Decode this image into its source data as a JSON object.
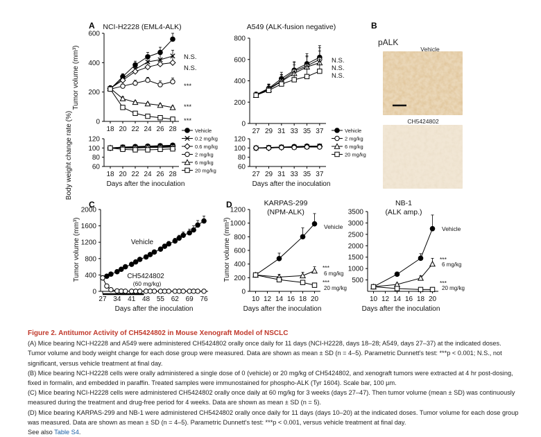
{
  "panels": {
    "A": "A",
    "B": "B",
    "C": "C",
    "D": "D"
  },
  "pAlk_label": "pALK",
  "micro_vehicle": "Vehicle",
  "micro_drug": "CH5424802",
  "caption": {
    "title": "Figure 2. Antitumor Activity of CH5424802 in Mouse Xenograft Model of NSCLC",
    "A": "(A) Mice bearing NCI-H2228 and A549 were administered CH5424802 orally once daily for 11 days (NCI-H2228, days 18–28; A549, days 27–37) at the indicated doses. Tumor volume and body weight change for each dose group were measured. Data are shown as mean ± SD (n = 4–5). Parametric Dunnett's test: ***p < 0.001; N.S., not significant, versus vehicle treatment at final day.",
    "B": "(B) Mice bearing NCI-H2228 cells were orally administered a single dose of 0 (vehicle) or 20 mg/kg of CH5424802, and xenograft tumors were extracted at 4 hr post-dosing, fixed in formalin, and embedded in paraffin. Treated samples were immunostained for phospho-ALK (Tyr 1604). Scale bar, 100 µm.",
    "C": "(C) Mice bearing NCI-H2228 cells were administered CH5424802 orally once daily at 60 mg/kg for 3 weeks (days 27–47). Then tumor volume (mean ± SD) was continuously measured during the treatment and drug-free period for 4 weeks. Data are shown as mean ± SD (n = 5).",
    "D": "(D) Mice bearing KARPAS-299 and NB-1 were administered CH5424802 orally once daily for 11 days (days 10–20) at the indicated doses. Tumor volume for each dose group was measured. Data are shown as mean ± SD (n = 4–5). Parametric Dunnett's test: ***p < 0.001, versus vehicle treatment at final day.",
    "see_also": "See also ",
    "see_also_link": "Table S4",
    "see_also_end": "."
  },
  "chart_data": [
    {
      "id": "A1",
      "type": "line",
      "title": "NCI-H2228 (EML4-ALK)",
      "ylabel": "Tumor volume (mm³)",
      "xlabel": "",
      "xlim": [
        17,
        29
      ],
      "ylim": [
        0,
        600
      ],
      "xticks": [
        18,
        20,
        22,
        24,
        26,
        28
      ],
      "yticks": [
        0,
        200,
        400,
        600
      ],
      "x": [
        18,
        20,
        22,
        24,
        26,
        28
      ],
      "series": [
        {
          "name": "Vehicle",
          "marker": "filled-circle",
          "values": [
            220,
            305,
            385,
            440,
            470,
            560
          ],
          "err": [
            18,
            20,
            25,
            30,
            35,
            40
          ]
        },
        {
          "name": "0.2 mg/kg",
          "marker": "x",
          "values": [
            225,
            290,
            355,
            405,
            420,
            445
          ],
          "err": [
            18,
            20,
            25,
            30,
            35,
            40
          ]
        },
        {
          "name": "0.6 mg/kg",
          "marker": "diamond",
          "values": [
            225,
            280,
            340,
            370,
            390,
            400
          ],
          "err": [
            18,
            20,
            25,
            30,
            35,
            40
          ]
        },
        {
          "name": "2 mg/kg",
          "marker": "open-circle",
          "values": [
            220,
            240,
            260,
            280,
            250,
            270
          ],
          "err": [
            15,
            15,
            20,
            20,
            25,
            25
          ]
        },
        {
          "name": "6 mg/kg",
          "marker": "triangle",
          "values": [
            225,
            155,
            130,
            120,
            110,
            95
          ],
          "err": [
            12,
            12,
            10,
            10,
            10,
            10
          ]
        },
        {
          "name": "20 mg/kg",
          "marker": "square",
          "values": [
            220,
            95,
            55,
            35,
            25,
            15
          ],
          "err": [
            10,
            8,
            6,
            5,
            5,
            4
          ]
        }
      ],
      "annotations": [
        "N.S.",
        "N.S.",
        "***",
        "***",
        "***"
      ]
    },
    {
      "id": "A2",
      "type": "line",
      "title": "A549 (ALK-fusion negative)",
      "xlim": [
        26,
        38
      ],
      "ylim": [
        0,
        800
      ],
      "xticks": [
        27,
        29,
        31,
        33,
        35,
        37
      ],
      "yticks": [
        0,
        200,
        400,
        600,
        800
      ],
      "x": [
        27,
        29,
        31,
        33,
        35,
        37
      ],
      "series": [
        {
          "name": "Vehicle",
          "marker": "filled-circle",
          "values": [
            270,
            330,
            420,
            500,
            560,
            620
          ],
          "err": [
            25,
            40,
            60,
            80,
            95,
            110
          ]
        },
        {
          "name": "2 mg/kg",
          "marker": "open-circle",
          "values": [
            265,
            325,
            400,
            490,
            540,
            600
          ],
          "err": [
            25,
            40,
            60,
            80,
            95,
            110
          ]
        },
        {
          "name": "6 mg/kg",
          "marker": "triangle",
          "values": [
            265,
            320,
            395,
            470,
            530,
            570
          ],
          "err": [
            25,
            40,
            60,
            80,
            95,
            110
          ]
        },
        {
          "name": "20 mg/kg",
          "marker": "square",
          "values": [
            265,
            310,
            370,
            410,
            440,
            490
          ],
          "err": [
            25,
            40,
            60,
            80,
            95,
            110
          ]
        }
      ],
      "annotations": [
        "N.S.",
        "N.S.",
        "N.S."
      ]
    },
    {
      "id": "A1bw",
      "type": "line",
      "ylabel": "Body weight change rate (%)",
      "xlabel": "Days after the inoculation",
      "xlim": [
        17,
        29
      ],
      "ylim": [
        60,
        120
      ],
      "xticks": [
        18,
        20,
        22,
        24,
        26,
        28
      ],
      "yticks": [
        60,
        80,
        100,
        120
      ],
      "x": [
        18,
        20,
        22,
        24,
        26,
        28
      ],
      "series": [
        {
          "name": "Vehicle",
          "values": [
            100,
            102,
            103,
            104,
            105,
            106
          ]
        },
        {
          "name": "0.2 mg/kg",
          "values": [
            100,
            102,
            102,
            103,
            104,
            105
          ]
        },
        {
          "name": "0.6 mg/kg",
          "values": [
            100,
            101,
            102,
            102,
            103,
            104
          ]
        },
        {
          "name": "2 mg/kg",
          "values": [
            100,
            101,
            101,
            102,
            102,
            103
          ]
        },
        {
          "name": "6 mg/kg",
          "values": [
            100,
            100,
            100,
            101,
            101,
            102
          ]
        },
        {
          "name": "20 mg/kg",
          "values": [
            100,
            97,
            96,
            96,
            97,
            98
          ]
        }
      ]
    },
    {
      "id": "A2bw",
      "type": "line",
      "xlabel": "Days after the inoculation",
      "xlim": [
        26,
        38
      ],
      "ylim": [
        60,
        120
      ],
      "xticks": [
        27,
        29,
        31,
        33,
        35,
        37
      ],
      "yticks": [
        60,
        80,
        100,
        120
      ],
      "x": [
        27,
        29,
        31,
        33,
        35,
        37
      ],
      "series": [
        {
          "name": "Vehicle",
          "values": [
            100,
            101,
            102,
            103,
            104,
            104
          ]
        },
        {
          "name": "2 mg/kg",
          "values": [
            100,
            101,
            102,
            102,
            103,
            104
          ]
        },
        {
          "name": "6 mg/kg",
          "values": [
            100,
            100,
            101,
            102,
            103,
            103
          ]
        },
        {
          "name": "20 mg/kg",
          "values": [
            100,
            100,
            101,
            101,
            102,
            102
          ]
        }
      ]
    },
    {
      "id": "C",
      "type": "line",
      "ylabel": "Tumor volume (mm³)",
      "xlabel": "Days after the inoculation",
      "xlim": [
        26,
        78
      ],
      "ylim": [
        0,
        2000
      ],
      "xticks": [
        27,
        34,
        41,
        48,
        55,
        62,
        69,
        76
      ],
      "yticks": [
        0,
        400,
        800,
        1200,
        1600,
        2000
      ],
      "treatment_period": [
        27,
        47
      ],
      "series": [
        {
          "name": "Vehicle",
          "marker": "filled-circle",
          "x": [
            27,
            29,
            31,
            34,
            36,
            38,
            41,
            43,
            45,
            48,
            50,
            52,
            55,
            57,
            59,
            62,
            64,
            66,
            69,
            71,
            73,
            76
          ],
          "values": [
            330,
            370,
            420,
            480,
            540,
            600,
            660,
            720,
            780,
            840,
            900,
            960,
            1030,
            1100,
            1160,
            1230,
            1300,
            1370,
            1430,
            1500,
            1620,
            1720
          ],
          "err": [
            20,
            20,
            25,
            25,
            30,
            30,
            35,
            35,
            40,
            40,
            45,
            45,
            50,
            55,
            60,
            65,
            70,
            80,
            90,
            100,
            110,
            120
          ]
        },
        {
          "name": "CH5424802 (60 mg/kg)",
          "marker": "open-circle",
          "x": [
            27,
            29,
            31,
            34,
            36,
            38,
            41,
            43,
            45,
            48,
            50,
            52,
            55,
            57,
            59,
            62,
            64,
            66,
            69,
            71,
            73,
            76
          ],
          "values": [
            330,
            130,
            40,
            10,
            5,
            3,
            2,
            2,
            2,
            2,
            2,
            2,
            2,
            2,
            2,
            2,
            2,
            2,
            2,
            2,
            2,
            2
          ],
          "err": [
            20,
            15,
            8,
            3,
            2,
            1,
            1,
            1,
            1,
            1,
            1,
            1,
            1,
            1,
            1,
            1,
            1,
            1,
            1,
            1,
            1,
            1
          ]
        }
      ],
      "labels": [
        "Vehicle",
        "CH5424802",
        "(60 mg/kg)"
      ]
    },
    {
      "id": "D1",
      "type": "line",
      "title": "KARPAS-299",
      "subtitle": "(NPM-ALK)",
      "ylabel": "Tumor volume (mm³)",
      "xlabel": "Days after the inoculation",
      "xlim": [
        9,
        21
      ],
      "ylim": [
        0,
        1200
      ],
      "xticks": [
        10,
        12,
        14,
        16,
        18,
        20
      ],
      "yticks": [
        0,
        200,
        400,
        600,
        800,
        1000,
        1200
      ],
      "x": [
        10,
        14,
        18,
        20
      ],
      "series": [
        {
          "name": "Vehicle",
          "marker": "filled-circle",
          "values": [
            240,
            480,
            800,
            990
          ],
          "err": [
            20,
            80,
            130,
            150
          ]
        },
        {
          "name": "6 mg/kg",
          "marker": "triangle",
          "values": [
            240,
            210,
            230,
            300
          ],
          "err": [
            20,
            40,
            50,
            60
          ]
        },
        {
          "name": "20 mg/kg",
          "marker": "square",
          "values": [
            240,
            170,
            130,
            90
          ],
          "err": [
            20,
            30,
            30,
            25
          ]
        }
      ],
      "annotations": [
        "***",
        "***"
      ]
    },
    {
      "id": "D2",
      "type": "line",
      "title": "NB-1",
      "subtitle": "(ALK amp.)",
      "xlabel": "Days after the inoculation",
      "xlim": [
        9,
        21
      ],
      "ylim": [
        0,
        3500
      ],
      "xticks": [
        10,
        12,
        14,
        16,
        18,
        20
      ],
      "yticks": [
        500,
        1000,
        1500,
        2000,
        2500,
        3000,
        3500
      ],
      "x": [
        10,
        14,
        18,
        20
      ],
      "series": [
        {
          "name": "Vehicle",
          "marker": "filled-circle",
          "values": [
            200,
            750,
            1450,
            2750
          ],
          "err": [
            30,
            100,
            200,
            600
          ]
        },
        {
          "name": "6 mg/kg",
          "marker": "triangle",
          "values": [
            200,
            300,
            580,
            1200
          ],
          "err": [
            30,
            60,
            100,
            250
          ]
        },
        {
          "name": "20 mg/kg",
          "marker": "square",
          "values": [
            200,
            120,
            80,
            80
          ],
          "err": [
            30,
            20,
            15,
            15
          ]
        }
      ],
      "annotations": [
        "***",
        "***"
      ]
    }
  ]
}
